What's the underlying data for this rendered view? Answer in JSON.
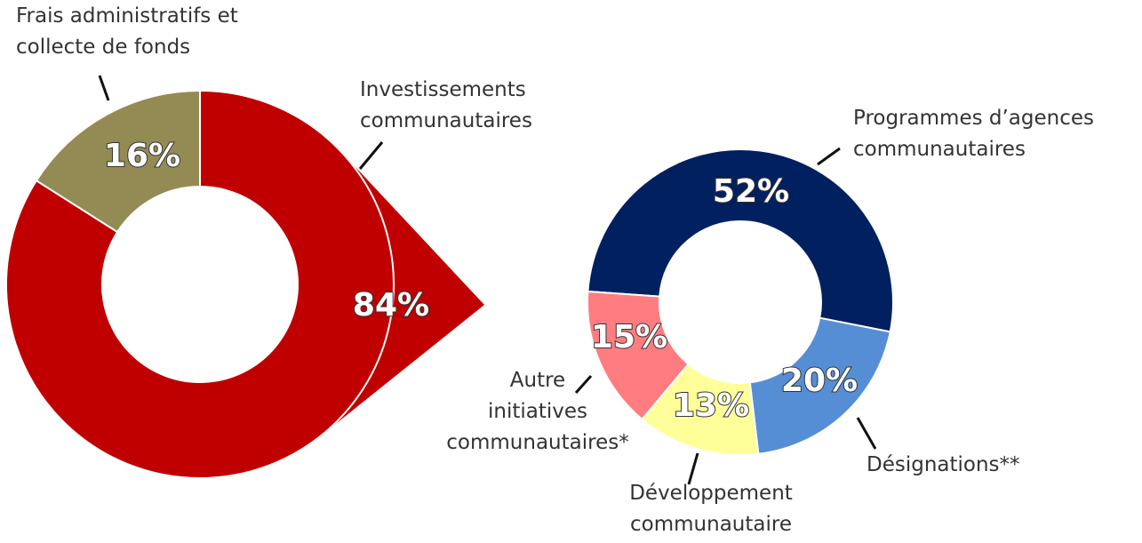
{
  "chart_data": [
    {
      "type": "donut",
      "categories": [
        "Investissements communautaires",
        "Frais administratifs et collecte de fonds"
      ],
      "values": [
        84,
        16
      ],
      "value_labels": [
        "84%",
        "16%"
      ],
      "colors": [
        "#c00000",
        "#948a54"
      ]
    },
    {
      "type": "donut",
      "categories": [
        "Programmes d’agences communautaires",
        "Désignations**",
        "Développement communautaire",
        "Autre initiatives communautaires*"
      ],
      "values": [
        52,
        20,
        13,
        15
      ],
      "value_labels": [
        "52%",
        "20%",
        "13%",
        "15%"
      ],
      "colors": [
        "#002060",
        "#558ed5",
        "#ffff99",
        "#ff7c80"
      ]
    }
  ]
}
